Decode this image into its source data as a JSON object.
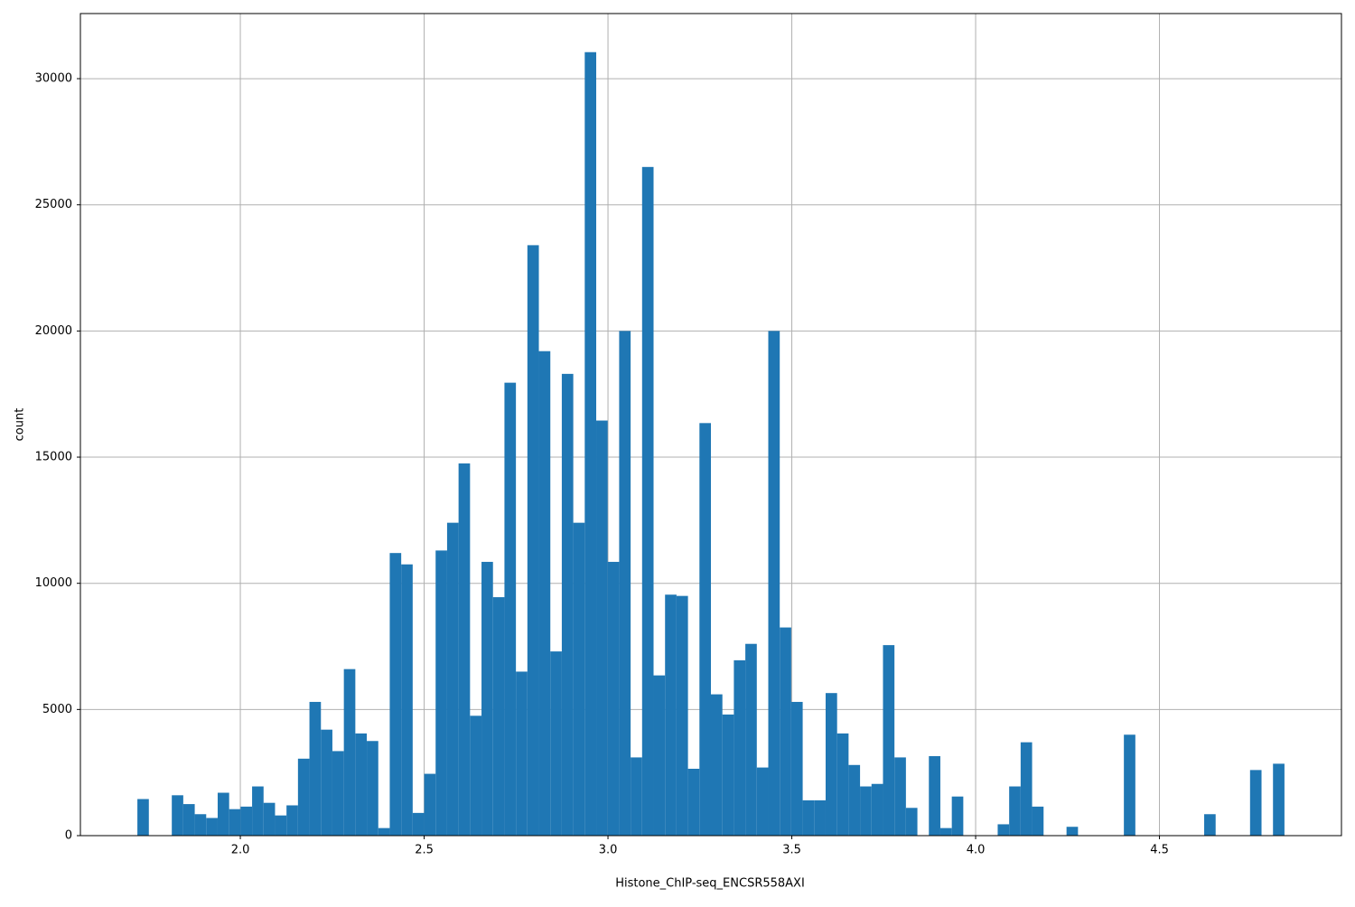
{
  "chart_data": {
    "type": "histogram",
    "xlabel": "Histone_ChIP-seq_ENCSR558AXI",
    "ylabel": "count",
    "color": "#1f77b4",
    "grid": true,
    "bins": [
      1.72,
      1.7512,
      1.7824,
      1.8136,
      1.8448,
      1.876,
      1.9072,
      1.9384,
      1.9696,
      2.0008,
      2.032,
      2.0632,
      2.0944,
      2.1256,
      2.1568,
      2.188,
      2.2192,
      2.2504,
      2.2816,
      2.3128,
      2.344,
      2.3752,
      2.4064,
      2.4376,
      2.4688,
      2.5,
      2.5312,
      2.5624,
      2.5936,
      2.6248,
      2.656,
      2.6872,
      2.7184,
      2.7496,
      2.7808,
      2.812,
      2.8432,
      2.8744,
      2.9056,
      2.9368,
      2.968,
      2.9992,
      3.0304,
      3.0616,
      3.0928,
      3.124,
      3.1552,
      3.1864,
      3.2176,
      3.2488,
      3.28,
      3.3112,
      3.3424,
      3.3736,
      3.4048,
      3.436,
      3.4672,
      3.4984,
      3.5296,
      3.5608,
      3.592,
      3.6232,
      3.6544,
      3.6856,
      3.7168,
      3.748,
      3.7792,
      3.8104,
      3.8416,
      3.8728,
      3.904,
      3.9352,
      3.9664,
      3.9976,
      4.0288,
      4.06,
      4.0912,
      4.1224,
      4.1536,
      4.1848,
      4.216,
      4.2472,
      4.2784,
      4.3096,
      4.3408,
      4.372,
      4.4032,
      4.4344,
      4.4656,
      4.4968,
      4.528,
      4.5592,
      4.5904,
      4.6216,
      4.6528,
      4.684,
      4.7152,
      4.7464,
      4.7776,
      4.8088,
      4.84
    ],
    "counts": [
      1450,
      0,
      0,
      1600,
      1250,
      850,
      700,
      1700,
      1050,
      1150,
      1950,
      1300,
      800,
      1200,
      3050,
      5300,
      4200,
      3350,
      6600,
      4050,
      3750,
      300,
      11200,
      10750,
      900,
      2450,
      11300,
      12400,
      14750,
      4750,
      10850,
      9450,
      17950,
      6500,
      23400,
      19200,
      7300,
      18300,
      12400,
      31050,
      16450,
      10850,
      20000,
      3100,
      26500,
      6350,
      9550,
      9500,
      2650,
      16350,
      5600,
      4800,
      6950,
      7600,
      2700,
      20000,
      8250,
      5300,
      1400,
      1400,
      5650,
      4050,
      2800,
      1950,
      2050,
      7550,
      3100,
      1100,
      0,
      3150,
      300,
      1550,
      0,
      0,
      0,
      450,
      1950,
      3700,
      1150,
      0,
      0,
      350,
      0,
      0,
      0,
      0,
      4000,
      0,
      0,
      0,
      0,
      0,
      0,
      850,
      0,
      0,
      0,
      2600,
      0,
      2850
    ],
    "xlim": [
      1.565,
      4.995
    ],
    "ylim": [
      0,
      32580
    ],
    "xticks": [
      {
        "value": 2,
        "label": "2.0"
      },
      {
        "value": 2.5,
        "label": "2.5"
      },
      {
        "value": 3,
        "label": "3.0"
      },
      {
        "value": 3.5,
        "label": "3.5"
      },
      {
        "value": 4,
        "label": "4.0"
      },
      {
        "value": 4.5,
        "label": "4.5"
      }
    ],
    "yticks": [
      0,
      5000,
      10000,
      15000,
      20000,
      25000,
      30000
    ]
  }
}
